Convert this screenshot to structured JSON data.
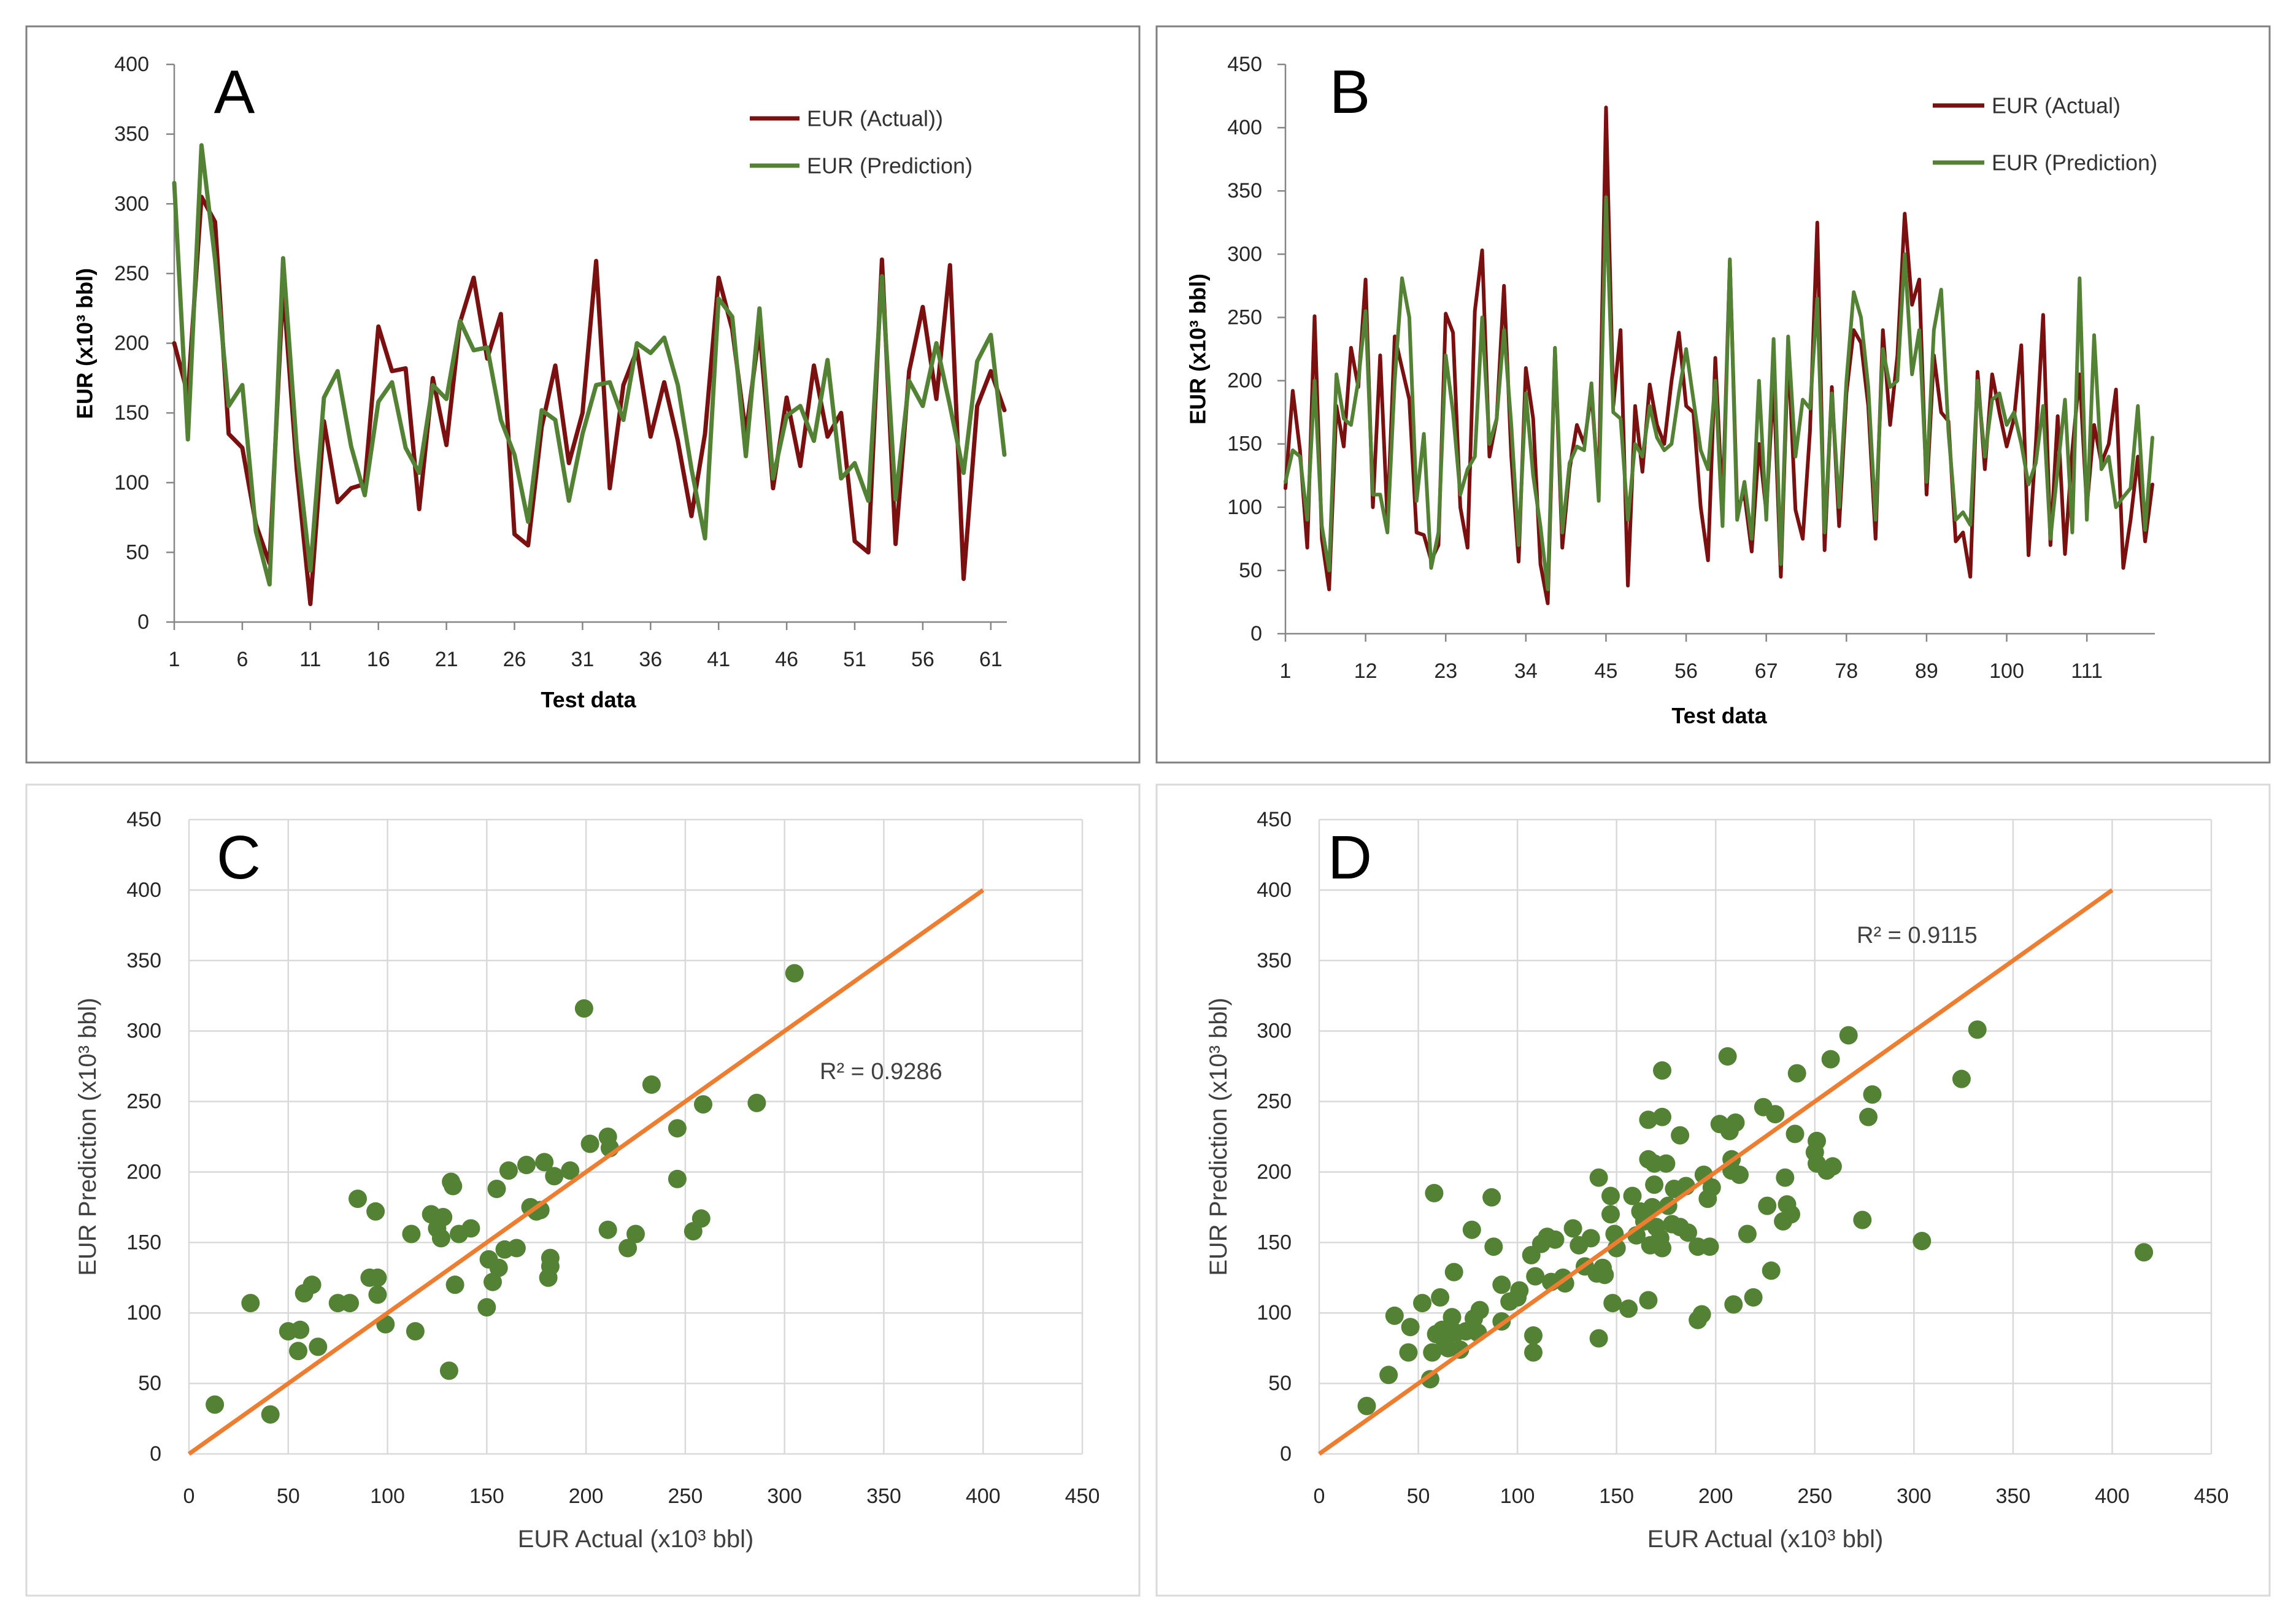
{
  "chart_data": [
    {
      "panel_label": "A",
      "type": "line",
      "xlabel": "Test data",
      "ylabel": "EUR (x10³ bbl)",
      "xlim": [
        1,
        62
      ],
      "ylim": [
        0,
        400
      ],
      "xticks": [
        1,
        6,
        11,
        16,
        21,
        26,
        31,
        36,
        41,
        46,
        51,
        56,
        61
      ],
      "yticks": [
        0,
        50,
        100,
        150,
        200,
        250,
        300,
        350,
        400
      ],
      "grid": false,
      "legend": "top-right",
      "series": [
        {
          "name": "EUR (Actual))",
          "color": "#7B1010",
          "values": [
            200,
            163,
            305,
            287,
            135,
            125,
            70,
            42,
            241,
            110,
            13,
            144,
            86,
            96,
            99,
            212,
            180,
            182,
            81,
            175,
            127,
            215,
            247,
            189,
            221,
            63,
            55,
            140,
            184,
            114,
            150,
            259,
            96,
            170,
            195,
            133,
            172,
            130,
            76,
            135,
            247,
            210,
            135,
            210,
            96,
            161,
            112,
            184,
            133,
            150,
            58,
            50,
            260,
            56,
            180,
            226,
            160,
            256,
            31,
            155,
            180,
            152
          ]
        },
        {
          "name": "EUR (Prediction)",
          "color": "#548235",
          "values": [
            315,
            131,
            342,
            260,
            155,
            170,
            65,
            27,
            261,
            125,
            37,
            161,
            180,
            126,
            91,
            158,
            172,
            125,
            107,
            170,
            160,
            216,
            195,
            197,
            145,
            120,
            72,
            152,
            145,
            87,
            135,
            170,
            172,
            145,
            200,
            193,
            204,
            170,
            110,
            60,
            232,
            219,
            119,
            225,
            103,
            148,
            155,
            130,
            188,
            103,
            114,
            87,
            248,
            88,
            173,
            155,
            200,
            155,
            107,
            187,
            206,
            120
          ]
        }
      ]
    },
    {
      "panel_label": "B",
      "type": "line",
      "xlabel": "Test data",
      "ylabel": "EUR (x10³ bbl)",
      "xlim": [
        1,
        120
      ],
      "ylim": [
        0,
        450
      ],
      "xticks": [
        1,
        12,
        23,
        34,
        45,
        56,
        67,
        78,
        89,
        100,
        111
      ],
      "yticks": [
        0,
        50,
        100,
        150,
        200,
        250,
        300,
        350,
        400,
        450
      ],
      "grid": false,
      "legend": "top-right",
      "series": [
        {
          "name": "EUR (Actual)",
          "color": "#7B1010",
          "values": [
            115,
            192,
            145,
            68,
            251,
            75,
            35,
            180,
            148,
            226,
            195,
            280,
            100,
            220,
            90,
            235,
            210,
            185,
            80,
            78,
            58,
            70,
            253,
            238,
            100,
            68,
            255,
            303,
            140,
            170,
            275,
            140,
            57,
            210,
            170,
            55,
            24,
            225,
            68,
            130,
            165,
            150,
            190,
            115,
            416,
            180,
            240,
            38,
            180,
            128,
            197,
            165,
            150,
            200,
            238,
            180,
            175,
            100,
            58,
            218,
            100,
            295,
            100,
            110,
            65,
            150,
            96,
            200,
            45,
            225,
            98,
            75,
            160,
            325,
            66,
            195,
            85,
            190,
            240,
            230,
            180,
            75,
            240,
            165,
            220,
            332,
            260,
            280,
            110,
            220,
            175,
            168,
            73,
            80,
            45,
            207,
            130,
            205,
            175,
            148,
            170,
            228,
            62,
            150,
            252,
            70,
            172,
            63,
            145,
            205,
            100,
            165,
            135,
            150,
            193,
            52,
            90,
            140,
            73,
            118
          ]
        },
        {
          "name": "EUR (Prediction)",
          "color": "#548235",
          "values": [
            120,
            145,
            140,
            90,
            200,
            85,
            50,
            205,
            170,
            165,
            200,
            255,
            110,
            110,
            80,
            200,
            281,
            250,
            105,
            158,
            52,
            80,
            220,
            175,
            110,
            130,
            140,
            250,
            150,
            170,
            240,
            165,
            70,
            190,
            125,
            85,
            35,
            226,
            80,
            135,
            148,
            145,
            198,
            105,
            345,
            175,
            170,
            90,
            150,
            140,
            180,
            155,
            145,
            150,
            190,
            225,
            185,
            145,
            130,
            200,
            85,
            296,
            90,
            120,
            75,
            200,
            90,
            233,
            55,
            235,
            140,
            185,
            178,
            265,
            80,
            190,
            100,
            200,
            270,
            250,
            195,
            90,
            225,
            195,
            200,
            300,
            205,
            240,
            120,
            240,
            272,
            160,
            90,
            96,
            86,
            200,
            140,
            185,
            190,
            165,
            175,
            150,
            118,
            135,
            180,
            75,
            130,
            185,
            80,
            281,
            90,
            236,
            130,
            140,
            100,
            108,
            115,
            180,
            82,
            155
          ]
        }
      ]
    },
    {
      "panel_label": "C",
      "type": "scatter",
      "xlabel": "EUR Actual (x10³ bbl)",
      "ylabel": "EUR Prediction (x10³ bbl)",
      "xlim": [
        0,
        450
      ],
      "ylim": [
        0,
        450
      ],
      "xticks": [
        0,
        50,
        100,
        150,
        200,
        250,
        300,
        350,
        400,
        450
      ],
      "yticks": [
        0,
        50,
        100,
        150,
        200,
        250,
        300,
        350,
        400,
        450
      ],
      "grid": true,
      "point_color": "#548235",
      "points": [
        [
          13,
          35
        ],
        [
          31,
          107
        ],
        [
          41,
          28
        ],
        [
          50,
          87
        ],
        [
          55,
          73
        ],
        [
          56,
          88
        ],
        [
          58,
          114
        ],
        [
          62,
          120
        ],
        [
          65,
          76
        ],
        [
          75,
          107
        ],
        [
          81,
          107
        ],
        [
          85,
          181
        ],
        [
          91,
          125
        ],
        [
          94,
          172
        ],
        [
          95,
          125
        ],
        [
          95,
          113
        ],
        [
          99,
          92
        ],
        [
          112,
          156
        ],
        [
          114,
          87
        ],
        [
          122,
          170
        ],
        [
          125,
          160
        ],
        [
          127,
          153
        ],
        [
          128,
          168
        ],
        [
          131,
          59
        ],
        [
          132,
          193
        ],
        [
          133,
          190
        ],
        [
          134,
          120
        ],
        [
          136,
          156
        ],
        [
          142,
          160
        ],
        [
          150,
          104
        ],
        [
          151,
          138
        ],
        [
          153,
          122
        ],
        [
          155,
          188
        ],
        [
          156,
          132
        ],
        [
          159,
          145
        ],
        [
          161,
          201
        ],
        [
          165,
          146
        ],
        [
          170,
          205
        ],
        [
          172,
          175
        ],
        [
          175,
          172
        ],
        [
          177,
          173
        ],
        [
          179,
          207
        ],
        [
          181,
          125
        ],
        [
          182,
          133
        ],
        [
          182,
          139
        ],
        [
          184,
          197
        ],
        [
          192,
          201
        ],
        [
          199,
          316
        ],
        [
          202,
          220
        ],
        [
          211,
          225
        ],
        [
          212,
          217
        ],
        [
          211,
          159
        ],
        [
          221,
          146
        ],
        [
          225,
          156
        ],
        [
          233,
          262
        ],
        [
          246,
          231
        ],
        [
          246,
          195
        ],
        [
          254,
          158
        ],
        [
          258,
          167
        ],
        [
          259,
          248
        ],
        [
          286,
          249
        ],
        [
          305,
          341
        ]
      ],
      "trendline": {
        "x": [
          0,
          400
        ],
        "y": [
          0,
          400
        ],
        "label": "R² = 0.9286",
        "color": "#ED7D31"
      }
    },
    {
      "panel_label": "D",
      "type": "scatter",
      "xlabel": "EUR Actual (x10³ bbl)",
      "ylabel": "EUR Prediction (x10³ bbl)",
      "xlim": [
        0,
        450
      ],
      "ylim": [
        0,
        450
      ],
      "xticks": [
        0,
        50,
        100,
        150,
        200,
        250,
        300,
        350,
        400,
        450
      ],
      "yticks": [
        0,
        50,
        100,
        150,
        200,
        250,
        300,
        350,
        400,
        450
      ],
      "grid": true,
      "point_color": "#548235",
      "points": [
        [
          24,
          34
        ],
        [
          35,
          56
        ],
        [
          38,
          98
        ],
        [
          45,
          72
        ],
        [
          46,
          90
        ],
        [
          52,
          107
        ],
        [
          56,
          53
        ],
        [
          57,
          72
        ],
        [
          58,
          185
        ],
        [
          59,
          85
        ],
        [
          61,
          111
        ],
        [
          62,
          88
        ],
        [
          63,
          81
        ],
        [
          65,
          75
        ],
        [
          67,
          97
        ],
        [
          68,
          129
        ],
        [
          69,
          86
        ],
        [
          71,
          74
        ],
        [
          74,
          87
        ],
        [
          77,
          159
        ],
        [
          78,
          96
        ],
        [
          80,
          86
        ],
        [
          81,
          102
        ],
        [
          87,
          182
        ],
        [
          88,
          147
        ],
        [
          92,
          94
        ],
        [
          92,
          120
        ],
        [
          96,
          108
        ],
        [
          100,
          111
        ],
        [
          101,
          116
        ],
        [
          107,
          141
        ],
        [
          108,
          84
        ],
        [
          108,
          72
        ],
        [
          109,
          126
        ],
        [
          112,
          149
        ],
        [
          115,
          154
        ],
        [
          117,
          122
        ],
        [
          119,
          152
        ],
        [
          123,
          125
        ],
        [
          124,
          121
        ],
        [
          128,
          160
        ],
        [
          131,
          148
        ],
        [
          134,
          133
        ],
        [
          137,
          153
        ],
        [
          140,
          128
        ],
        [
          141,
          196
        ],
        [
          141,
          82
        ],
        [
          143,
          132
        ],
        [
          144,
          127
        ],
        [
          147,
          170
        ],
        [
          147,
          183
        ],
        [
          148,
          107
        ],
        [
          149,
          156
        ],
        [
          150,
          146
        ],
        [
          156,
          103
        ],
        [
          158,
          183
        ],
        [
          160,
          155
        ],
        [
          162,
          172
        ],
        [
          164,
          165
        ],
        [
          166,
          237
        ],
        [
          166,
          109
        ],
        [
          166,
          209
        ],
        [
          167,
          148
        ],
        [
          168,
          175
        ],
        [
          169,
          191
        ],
        [
          169,
          206
        ],
        [
          170,
          161
        ],
        [
          172,
          153
        ],
        [
          173,
          272
        ],
        [
          173,
          239
        ],
        [
          173,
          146
        ],
        [
          175,
          206
        ],
        [
          176,
          176
        ],
        [
          178,
          163
        ],
        [
          179,
          188
        ],
        [
          182,
          226
        ],
        [
          182,
          161
        ],
        [
          185,
          190
        ],
        [
          186,
          157
        ],
        [
          191,
          147
        ],
        [
          191,
          95
        ],
        [
          193,
          99
        ],
        [
          194,
          198
        ],
        [
          196,
          181
        ],
        [
          197,
          147
        ],
        [
          198,
          189
        ],
        [
          202,
          234
        ],
        [
          206,
          282
        ],
        [
          207,
          229
        ],
        [
          208,
          209
        ],
        [
          208,
          201
        ],
        [
          209,
          106
        ],
        [
          210,
          235
        ],
        [
          212,
          198
        ],
        [
          216,
          156
        ],
        [
          219,
          111
        ],
        [
          224,
          246
        ],
        [
          226,
          176
        ],
        [
          228,
          130
        ],
        [
          230,
          241
        ],
        [
          234,
          165
        ],
        [
          235,
          196
        ],
        [
          236,
          177
        ],
        [
          238,
          170
        ],
        [
          240,
          227
        ],
        [
          241,
          270
        ],
        [
          250,
          214
        ],
        [
          251,
          222
        ],
        [
          251,
          206
        ],
        [
          256,
          201
        ],
        [
          258,
          280
        ],
        [
          259,
          204
        ],
        [
          267,
          297
        ],
        [
          274,
          166
        ],
        [
          277,
          239
        ],
        [
          279,
          255
        ],
        [
          304,
          151
        ],
        [
          324,
          266
        ],
        [
          332,
          301
        ],
        [
          416,
          143
        ]
      ],
      "trendline": {
        "x": [
          0,
          400
        ],
        "y": [
          0,
          400
        ],
        "label": "R² = 0.9115",
        "color": "#ED7D31"
      }
    }
  ]
}
